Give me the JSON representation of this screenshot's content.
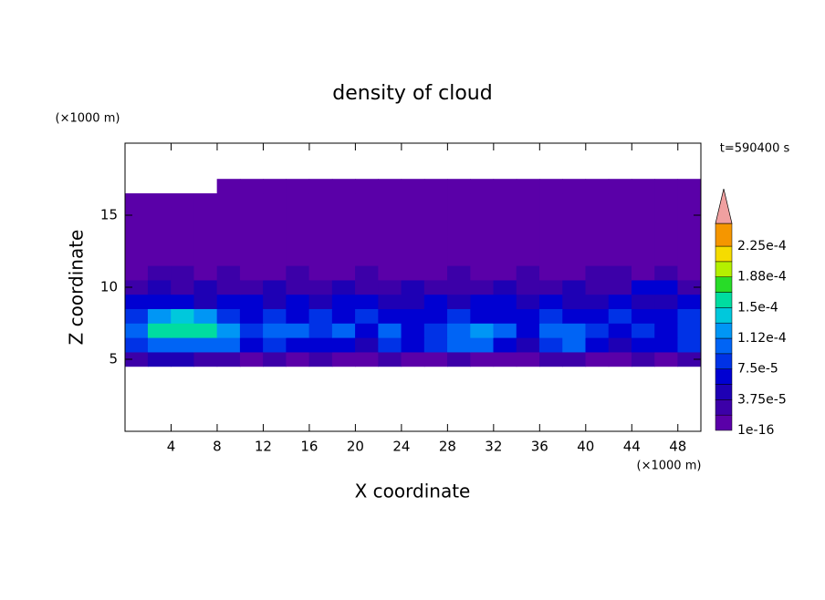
{
  "chart_data": {
    "type": "contour",
    "title": "density of cloud",
    "xlabel": "X coordinate",
    "ylabel": "Z coordinate",
    "xunit": "(×1000 m)",
    "yunit": "(×1000 m)",
    "annotation": "t=590400 s",
    "xlim": [
      0,
      50
    ],
    "xticks": [
      4,
      8,
      12,
      16,
      20,
      24,
      28,
      32,
      36,
      40,
      44,
      48
    ],
    "ylim": [
      0,
      20
    ],
    "yticks": [
      5,
      10,
      15
    ],
    "x": [
      1,
      3,
      5,
      7,
      9,
      11,
      13,
      15,
      17,
      19,
      21,
      23,
      25,
      27,
      29,
      31,
      33,
      35,
      37,
      39,
      41,
      43,
      45,
      47,
      49
    ],
    "y": [
      5,
      6,
      7,
      8,
      9,
      10,
      11,
      12,
      13,
      14,
      15,
      16,
      17
    ],
    "z": [
      [
        3e-05,
        4e-05,
        4e-05,
        3e-05,
        3e-05,
        1e-05,
        3e-05,
        1e-05,
        3e-05,
        1e-05,
        1e-05,
        3e-05,
        1e-05,
        1e-05,
        3e-05,
        1e-05,
        1e-05,
        1e-05,
        3e-05,
        3e-05,
        1e-05,
        1e-05,
        3e-05,
        1e-05,
        3e-05
      ],
      [
        9e-05,
        0.00011,
        0.00011,
        0.00011,
        0.0001,
        7e-05,
        9e-05,
        7e-05,
        6e-05,
        7e-05,
        4e-05,
        9e-05,
        7e-05,
        9e-05,
        0.0001,
        0.0001,
        7e-05,
        4e-05,
        9e-05,
        0.0001,
        7e-05,
        4e-05,
        7e-05,
        6e-05,
        9e-05
      ],
      [
        0.0001,
        0.00015,
        0.00016,
        0.00015,
        0.00013,
        9e-05,
        0.00011,
        0.0001,
        9e-05,
        0.00011,
        7e-05,
        0.0001,
        6e-05,
        9e-05,
        0.00011,
        0.00013,
        0.0001,
        6e-05,
        0.00011,
        0.0001,
        9e-05,
        6e-05,
        9e-05,
        7e-05,
        9e-05
      ],
      [
        9e-05,
        0.00013,
        0.00014,
        0.00013,
        9e-05,
        7e-05,
        9e-05,
        7e-05,
        9e-05,
        7e-05,
        9e-05,
        7e-05,
        6e-05,
        7e-05,
        9e-05,
        7e-05,
        6e-05,
        7e-05,
        9e-05,
        6e-05,
        7e-05,
        9e-05,
        6e-05,
        7e-05,
        9e-05
      ],
      [
        6e-05,
        7e-05,
        6e-05,
        4e-05,
        7e-05,
        6e-05,
        4e-05,
        7e-05,
        4e-05,
        6e-05,
        7e-05,
        4e-05,
        4e-05,
        6e-05,
        4e-05,
        6e-05,
        7e-05,
        4e-05,
        6e-05,
        4e-05,
        4e-05,
        6e-05,
        4e-05,
        4e-05,
        6e-05
      ],
      [
        2.5e-05,
        4e-05,
        2.5e-05,
        4e-05,
        2.5e-05,
        2.5e-05,
        4e-05,
        2.5e-05,
        2.5e-05,
        4e-05,
        2.5e-05,
        2.5e-05,
        4e-05,
        2.5e-05,
        2.5e-05,
        2.5e-05,
        4e-05,
        2.5e-05,
        2.5e-05,
        4e-05,
        2.5e-05,
        2.5e-05,
        7e-05,
        7e-05,
        2.5e-05
      ],
      [
        1e-05,
        2.5e-05,
        2.5e-05,
        1e-05,
        2.5e-05,
        1e-05,
        1e-05,
        2.5e-05,
        1e-05,
        1e-05,
        2.5e-05,
        1e-05,
        1e-05,
        1e-05,
        2.5e-05,
        1e-05,
        1e-05,
        2.5e-05,
        1e-05,
        1e-05,
        2.5e-05,
        2.5e-05,
        1e-05,
        2.5e-05,
        1e-05
      ],
      [
        1e-05,
        1e-05,
        1e-05,
        1e-05,
        1e-05,
        1e-05,
        1e-05,
        1e-05,
        1e-05,
        1e-05,
        1e-05,
        1e-05,
        1e-05,
        1e-05,
        1e-05,
        1e-05,
        1e-05,
        1e-05,
        1e-05,
        1e-05,
        1e-05,
        1e-05,
        1e-05,
        1e-05,
        1e-05
      ],
      [
        1e-05,
        1e-05,
        1e-05,
        1e-05,
        1e-05,
        1e-05,
        1e-05,
        1e-05,
        1e-05,
        1e-05,
        1e-05,
        1e-05,
        1e-05,
        1e-05,
        1e-05,
        1e-05,
        1e-05,
        1e-05,
        1e-05,
        1e-05,
        1e-05,
        1e-05,
        1e-05,
        1e-05,
        1e-05
      ],
      [
        1e-05,
        1e-05,
        1e-05,
        1e-05,
        1e-05,
        1e-05,
        1e-05,
        1e-05,
        1e-05,
        1e-05,
        1e-05,
        1e-05,
        1e-05,
        1e-05,
        1e-05,
        1e-05,
        1e-05,
        1e-05,
        1e-05,
        1e-05,
        1e-05,
        1e-05,
        1e-05,
        1e-05,
        1e-05
      ],
      [
        1e-05,
        1e-05,
        1e-05,
        1e-05,
        1e-05,
        1e-05,
        1e-05,
        1e-05,
        1e-05,
        1e-05,
        1e-05,
        1e-05,
        1e-05,
        1e-05,
        1e-05,
        1e-05,
        1e-05,
        1e-05,
        1e-05,
        1e-05,
        1e-05,
        1e-05,
        1e-05,
        1e-05,
        1e-05
      ],
      [
        1e-05,
        1e-05,
        1e-05,
        1e-05,
        1e-05,
        1e-05,
        1e-05,
        1e-05,
        1e-05,
        1e-05,
        1e-05,
        1e-05,
        1e-05,
        1e-05,
        1e-05,
        1e-05,
        1e-05,
        1e-05,
        1e-05,
        1e-05,
        1e-05,
        1e-05,
        1e-05,
        1e-05,
        1e-05
      ],
      [
        null,
        null,
        null,
        null,
        1e-05,
        1e-05,
        1e-05,
        1e-05,
        1e-05,
        1e-05,
        1e-05,
        1e-05,
        1e-05,
        1e-05,
        1e-05,
        1e-05,
        1e-05,
        1e-05,
        1e-05,
        1e-05,
        1e-05,
        1e-05,
        1e-05,
        1e-05,
        1e-05
      ]
    ],
    "colorbar": {
      "levels": [
        {
          "value": 1e-16,
          "label": "1e-16"
        },
        1.875e-05,
        {
          "value": 3.75e-05,
          "label": "3.75e-5"
        },
        5.625e-05,
        {
          "value": 7.5e-05,
          "label": "7.5e-5"
        },
        9.375e-05,
        {
          "value": 0.0001125,
          "label": "1.12e-4"
        },
        0.00013125,
        {
          "value": 0.00015,
          "label": "1.5e-4"
        },
        0.00016875,
        {
          "value": 0.0001875,
          "label": "1.88e-4"
        },
        0.00020625,
        {
          "value": 0.000225,
          "label": "2.25e-4"
        }
      ],
      "colors": [
        "#5a00a8",
        "#3c00a8",
        "#1e00b4",
        "#0000d2",
        "#0032e6",
        "#0064f5",
        "#0096f5",
        "#00c8dc",
        "#00dca0",
        "#28dc28",
        "#b4f000",
        "#f5dc00",
        "#f59600"
      ],
      "extend_color": "#f0a0a0"
    }
  }
}
